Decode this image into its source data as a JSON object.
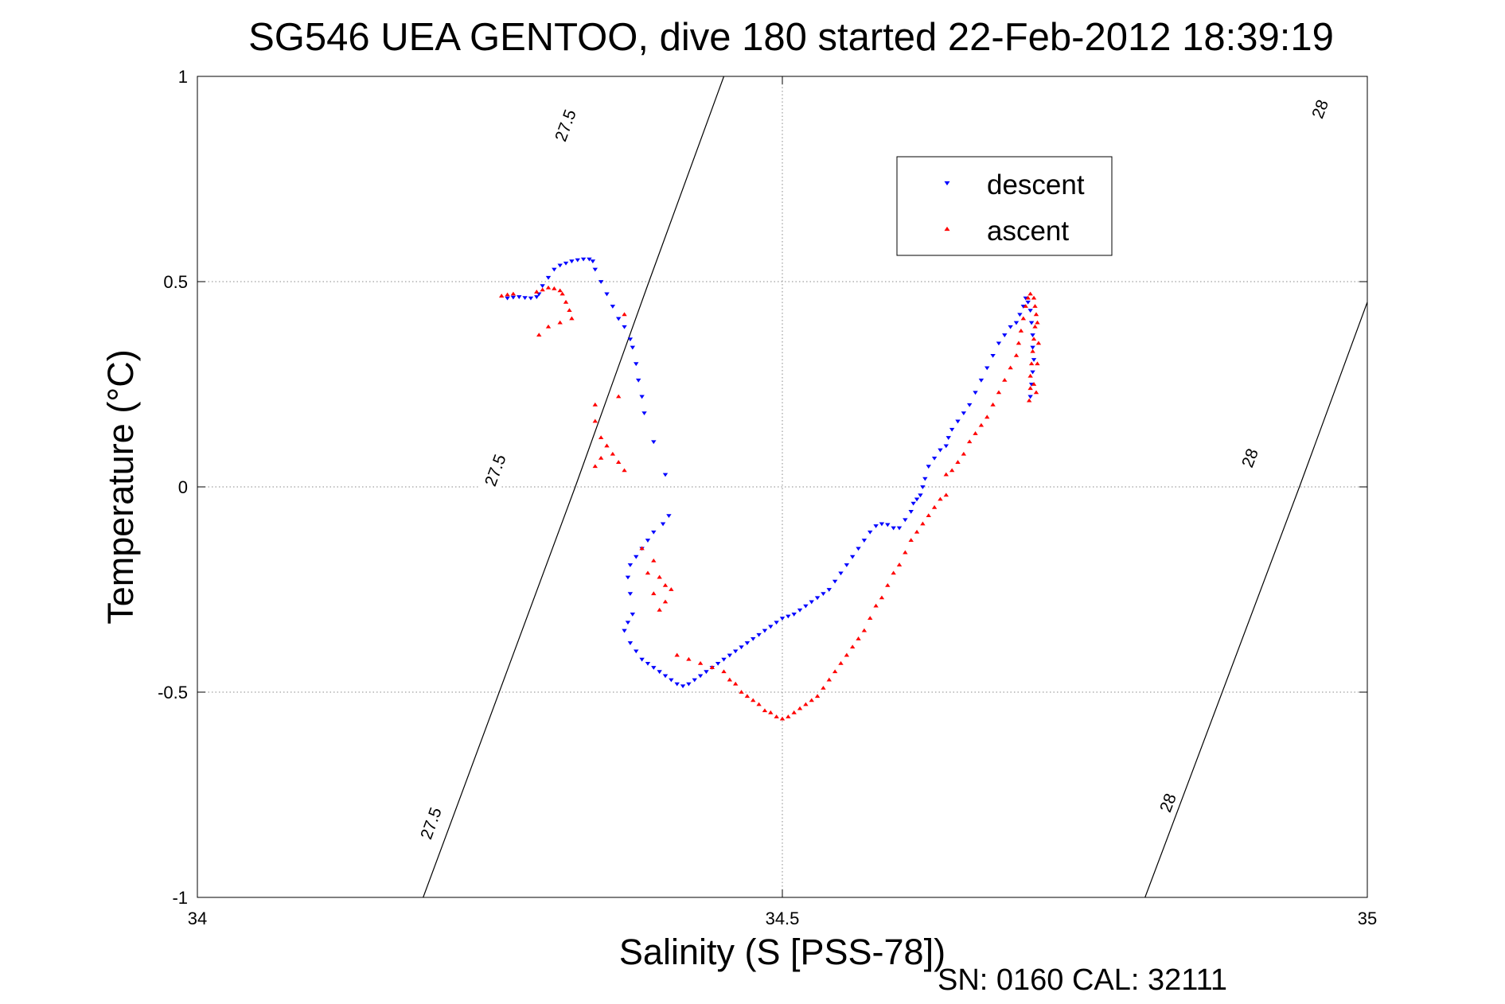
{
  "chart_data": {
    "type": "scatter",
    "title": "SG546 UEA GENTOO, dive 180 started 22-Feb-2012 18:39:19",
    "xlabel": "Salinity (S [PSS-78])",
    "ylabel": "Temperature (°C)",
    "footer": "SN: 0160  CAL: 32111",
    "xlim": [
      34,
      35
    ],
    "ylim": [
      -1,
      1
    ],
    "xticks": [
      34,
      34.5,
      35
    ],
    "xtick_labels": [
      "34",
      "34.5",
      "35"
    ],
    "yticks": [
      -1,
      -0.5,
      0,
      0.5,
      1
    ],
    "ytick_labels": [
      "-1",
      "-0.5",
      "0",
      "0.5",
      "1"
    ],
    "grid": true,
    "legend_position": "top-right",
    "isopycnals": [
      {
        "label": "27.5",
        "points": [
          [
            34.193,
            -1.0
          ],
          [
            34.323,
            0.0
          ],
          [
            34.386,
            0.5
          ],
          [
            34.45,
            1.0
          ]
        ],
        "label_positions": [
          [
            34.2,
            -0.82
          ],
          [
            34.255,
            0.04
          ],
          [
            34.315,
            0.88
          ]
        ]
      },
      {
        "label": "28",
        "points": [
          [
            34.81,
            -1.0
          ],
          [
            34.942,
            0.0
          ],
          [
            35.0,
            0.45
          ],
          [
            35.075,
            1.0
          ]
        ],
        "label_positions": [
          [
            34.83,
            -0.77
          ],
          [
            34.9,
            0.07
          ],
          [
            34.96,
            0.92
          ]
        ]
      }
    ],
    "series": [
      {
        "name": "descent",
        "color": "#0000ff",
        "marker": "triangle-down",
        "points": [
          [
            34.265,
            0.46
          ],
          [
            34.27,
            0.462
          ],
          [
            34.275,
            0.463
          ],
          [
            34.28,
            0.461
          ],
          [
            34.285,
            0.46
          ],
          [
            34.29,
            0.463
          ],
          [
            34.292,
            0.47
          ],
          [
            34.295,
            0.49
          ],
          [
            34.3,
            0.51
          ],
          [
            34.305,
            0.53
          ],
          [
            34.31,
            0.54
          ],
          [
            34.315,
            0.545
          ],
          [
            34.32,
            0.55
          ],
          [
            34.325,
            0.553
          ],
          [
            34.33,
            0.555
          ],
          [
            34.335,
            0.555
          ],
          [
            34.338,
            0.55
          ],
          [
            34.34,
            0.53
          ],
          [
            34.345,
            0.5
          ],
          [
            34.35,
            0.47
          ],
          [
            34.355,
            0.44
          ],
          [
            34.36,
            0.41
          ],
          [
            34.365,
            0.39
          ],
          [
            34.37,
            0.36
          ],
          [
            34.372,
            0.34
          ],
          [
            34.375,
            0.3
          ],
          [
            34.377,
            0.26
          ],
          [
            34.38,
            0.22
          ],
          [
            34.382,
            0.18
          ],
          [
            34.39,
            0.11
          ],
          [
            34.4,
            0.03
          ],
          [
            34.403,
            -0.07
          ],
          [
            34.398,
            -0.09
          ],
          [
            34.39,
            -0.11
          ],
          [
            34.385,
            -0.13
          ],
          [
            34.38,
            -0.15
          ],
          [
            34.375,
            -0.17
          ],
          [
            34.37,
            -0.19
          ],
          [
            34.368,
            -0.22
          ],
          [
            34.37,
            -0.26
          ],
          [
            34.372,
            -0.31
          ],
          [
            34.368,
            -0.33
          ],
          [
            34.365,
            -0.35
          ],
          [
            34.37,
            -0.38
          ],
          [
            34.375,
            -0.4
          ],
          [
            34.38,
            -0.42
          ],
          [
            34.385,
            -0.43
          ],
          [
            34.39,
            -0.44
          ],
          [
            34.395,
            -0.45
          ],
          [
            34.4,
            -0.46
          ],
          [
            34.405,
            -0.47
          ],
          [
            34.41,
            -0.48
          ],
          [
            34.415,
            -0.485
          ],
          [
            34.42,
            -0.48
          ],
          [
            34.425,
            -0.47
          ],
          [
            34.43,
            -0.46
          ],
          [
            34.435,
            -0.45
          ],
          [
            34.44,
            -0.44
          ],
          [
            34.445,
            -0.43
          ],
          [
            34.45,
            -0.42
          ],
          [
            34.455,
            -0.41
          ],
          [
            34.46,
            -0.4
          ],
          [
            34.465,
            -0.39
          ],
          [
            34.47,
            -0.38
          ],
          [
            34.475,
            -0.37
          ],
          [
            34.48,
            -0.36
          ],
          [
            34.485,
            -0.35
          ],
          [
            34.49,
            -0.34
          ],
          [
            34.495,
            -0.33
          ],
          [
            34.5,
            -0.32
          ],
          [
            34.505,
            -0.315
          ],
          [
            34.51,
            -0.31
          ],
          [
            34.515,
            -0.3
          ],
          [
            34.52,
            -0.29
          ],
          [
            34.525,
            -0.28
          ],
          [
            34.53,
            -0.27
          ],
          [
            34.535,
            -0.26
          ],
          [
            34.54,
            -0.25
          ],
          [
            34.545,
            -0.23
          ],
          [
            34.55,
            -0.21
          ],
          [
            34.555,
            -0.19
          ],
          [
            34.56,
            -0.17
          ],
          [
            34.565,
            -0.15
          ],
          [
            34.57,
            -0.13
          ],
          [
            34.575,
            -0.11
          ],
          [
            34.58,
            -0.095
          ],
          [
            34.585,
            -0.09
          ],
          [
            34.59,
            -0.092
          ],
          [
            34.595,
            -0.1
          ],
          [
            34.6,
            -0.1
          ],
          [
            34.605,
            -0.08
          ],
          [
            34.61,
            -0.06
          ],
          [
            34.612,
            -0.04
          ],
          [
            34.615,
            -0.03
          ],
          [
            34.618,
            -0.02
          ],
          [
            34.62,
            0.0
          ],
          [
            34.622,
            0.02
          ],
          [
            34.625,
            0.05
          ],
          [
            34.63,
            0.07
          ],
          [
            34.635,
            0.09
          ],
          [
            34.64,
            0.1
          ],
          [
            34.642,
            0.12
          ],
          [
            34.645,
            0.14
          ],
          [
            34.65,
            0.16
          ],
          [
            34.655,
            0.18
          ],
          [
            34.66,
            0.2
          ],
          [
            34.665,
            0.23
          ],
          [
            34.67,
            0.26
          ],
          [
            34.675,
            0.29
          ],
          [
            34.68,
            0.32
          ],
          [
            34.685,
            0.35
          ],
          [
            34.69,
            0.37
          ],
          [
            34.695,
            0.39
          ],
          [
            34.7,
            0.4
          ],
          [
            34.703,
            0.42
          ],
          [
            34.706,
            0.44
          ],
          [
            34.708,
            0.46
          ],
          [
            34.71,
            0.45
          ],
          [
            34.712,
            0.43
          ],
          [
            34.713,
            0.4
          ],
          [
            34.714,
            0.37
          ],
          [
            34.714,
            0.34
          ],
          [
            34.715,
            0.31
          ],
          [
            34.714,
            0.28
          ],
          [
            34.713,
            0.25
          ],
          [
            34.712,
            0.22
          ]
        ]
      },
      {
        "name": "ascent",
        "color": "#ff0000",
        "marker": "triangle-up",
        "points": [
          [
            34.26,
            0.465
          ],
          [
            34.265,
            0.468
          ],
          [
            34.27,
            0.47
          ],
          [
            34.29,
            0.475
          ],
          [
            34.295,
            0.48
          ],
          [
            34.3,
            0.485
          ],
          [
            34.305,
            0.483
          ],
          [
            34.31,
            0.478
          ],
          [
            34.312,
            0.47
          ],
          [
            34.315,
            0.45
          ],
          [
            34.318,
            0.43
          ],
          [
            34.32,
            0.41
          ],
          [
            34.31,
            0.4
          ],
          [
            34.3,
            0.39
          ],
          [
            34.292,
            0.37
          ],
          [
            34.36,
            0.22
          ],
          [
            34.34,
            0.2
          ],
          [
            34.34,
            0.16
          ],
          [
            34.345,
            0.12
          ],
          [
            34.35,
            0.1
          ],
          [
            34.355,
            0.08
          ],
          [
            34.34,
            0.05
          ],
          [
            34.36,
            0.06
          ],
          [
            34.365,
            0.04
          ],
          [
            34.345,
            0.07
          ],
          [
            34.365,
            0.42
          ],
          [
            34.38,
            -0.15
          ],
          [
            34.39,
            -0.18
          ],
          [
            34.385,
            -0.21
          ],
          [
            34.395,
            -0.22
          ],
          [
            34.4,
            -0.24
          ],
          [
            34.39,
            -0.26
          ],
          [
            34.395,
            -0.3
          ],
          [
            34.405,
            -0.25
          ],
          [
            34.4,
            -0.28
          ],
          [
            34.41,
            -0.41
          ],
          [
            34.42,
            -0.42
          ],
          [
            34.43,
            -0.43
          ],
          [
            34.44,
            -0.44
          ],
          [
            34.45,
            -0.45
          ],
          [
            34.455,
            -0.47
          ],
          [
            34.46,
            -0.48
          ],
          [
            34.465,
            -0.5
          ],
          [
            34.47,
            -0.51
          ],
          [
            34.475,
            -0.52
          ],
          [
            34.48,
            -0.53
          ],
          [
            34.485,
            -0.545
          ],
          [
            34.49,
            -0.55
          ],
          [
            34.495,
            -0.56
          ],
          [
            34.5,
            -0.565
          ],
          [
            34.505,
            -0.56
          ],
          [
            34.51,
            -0.55
          ],
          [
            34.515,
            -0.54
          ],
          [
            34.52,
            -0.53
          ],
          [
            34.525,
            -0.52
          ],
          [
            34.53,
            -0.51
          ],
          [
            34.535,
            -0.49
          ],
          [
            34.54,
            -0.47
          ],
          [
            34.545,
            -0.45
          ],
          [
            34.55,
            -0.43
          ],
          [
            34.555,
            -0.41
          ],
          [
            34.56,
            -0.39
          ],
          [
            34.565,
            -0.37
          ],
          [
            34.57,
            -0.35
          ],
          [
            34.575,
            -0.32
          ],
          [
            34.58,
            -0.29
          ],
          [
            34.585,
            -0.27
          ],
          [
            34.59,
            -0.24
          ],
          [
            34.595,
            -0.21
          ],
          [
            34.6,
            -0.19
          ],
          [
            34.605,
            -0.16
          ],
          [
            34.61,
            -0.13
          ],
          [
            34.615,
            -0.11
          ],
          [
            34.62,
            -0.09
          ],
          [
            34.625,
            -0.07
          ],
          [
            34.63,
            -0.05
          ],
          [
            34.635,
            -0.03
          ],
          [
            34.64,
            -0.02
          ],
          [
            34.64,
            0.03
          ],
          [
            34.645,
            0.04
          ],
          [
            34.65,
            0.06
          ],
          [
            34.655,
            0.08
          ],
          [
            34.66,
            0.11
          ],
          [
            34.665,
            0.13
          ],
          [
            34.67,
            0.15
          ],
          [
            34.675,
            0.17
          ],
          [
            34.68,
            0.2
          ],
          [
            34.685,
            0.23
          ],
          [
            34.69,
            0.26
          ],
          [
            34.695,
            0.29
          ],
          [
            34.7,
            0.32
          ],
          [
            34.702,
            0.35
          ],
          [
            34.704,
            0.38
          ],
          [
            34.706,
            0.41
          ],
          [
            34.708,
            0.44
          ],
          [
            34.71,
            0.46
          ],
          [
            34.712,
            0.47
          ],
          [
            34.715,
            0.46
          ],
          [
            34.716,
            0.44
          ],
          [
            34.717,
            0.42
          ],
          [
            34.716,
            0.39
          ],
          [
            34.715,
            0.36
          ],
          [
            34.714,
            0.33
          ],
          [
            34.713,
            0.3
          ],
          [
            34.712,
            0.27
          ],
          [
            34.712,
            0.24
          ],
          [
            34.711,
            0.21
          ],
          [
            34.715,
            0.25
          ],
          [
            34.717,
            0.23
          ],
          [
            34.718,
            0.3
          ],
          [
            34.719,
            0.35
          ],
          [
            34.718,
            0.4
          ]
        ]
      }
    ]
  }
}
